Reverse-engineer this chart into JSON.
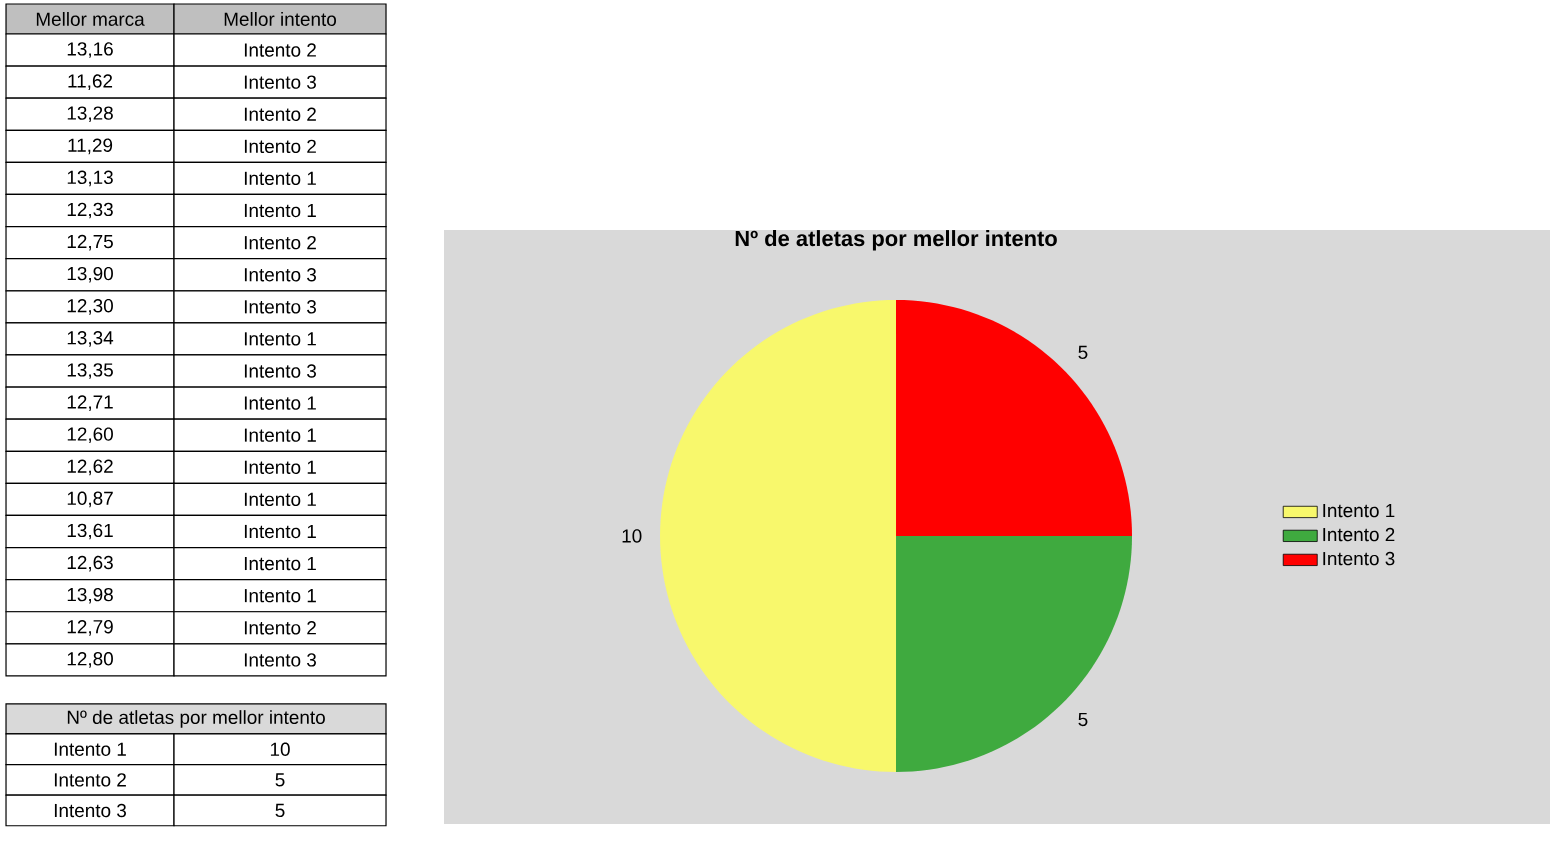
{
  "chart_data": [
    {
      "type": "other",
      "annotations": [
        "Mellor marca",
        "Mellor intento",
        "13,16",
        "Intento 2",
        "11,62",
        "Intento 3",
        "13,28",
        "Intento 2",
        "11,29",
        "Intento 2",
        "13,13",
        "Intento 1",
        "12,33",
        "Intento 1",
        "12,75",
        "Intento 2",
        "13,90",
        "Intento 3",
        "12,30",
        "Intento 3",
        "13,34",
        "Intento 1",
        "13,35",
        "Intento 3",
        "12,71",
        "Intento 1",
        "12,60",
        "Intento 1",
        "12,62",
        "Intento 1",
        "10,87",
        "Intento 1",
        "13,61",
        "Intento 1",
        "12,63",
        "Intento 1",
        "13,98",
        "Intento 1",
        "12,79",
        "Intento 2",
        "12,80",
        "Intento 3",
        "Nº de atletas por mellor intento",
        "Intento 1",
        "10",
        "Intento 2",
        "5",
        "Intento 3",
        "5"
      ]
    },
    {
      "type": "pie",
      "title": "Nº de atletas por mellor intento",
      "categories": [
        "Intento 1",
        "Intento 2",
        "Intento 3"
      ],
      "values": [
        10,
        5,
        5
      ],
      "colors": [
        "#f8f86c",
        "#3faa3f",
        "#ff0000"
      ],
      "data_labels": true,
      "legend": "right"
    }
  ]
}
